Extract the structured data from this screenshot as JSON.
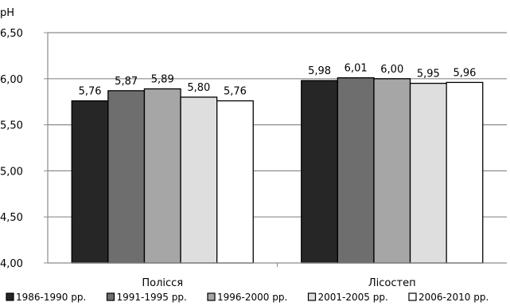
{
  "chart_data": {
    "type": "bar",
    "ylabel": "pH",
    "xlabel": "",
    "ylim": [
      4.0,
      6.5
    ],
    "ytick_step": 0.5,
    "grid": true,
    "legend_position": "bottom",
    "categories": [
      "Полісся",
      "Лісостеп"
    ],
    "series": [
      {
        "name": "1986-1990 рр.",
        "values": [
          5.76,
          5.98
        ],
        "labels": [
          "5,76",
          "5,98"
        ],
        "color": "#262626"
      },
      {
        "name": "1991-1995 рр.",
        "values": [
          5.87,
          6.01
        ],
        "labels": [
          "5,87",
          "6,01"
        ],
        "color": "#6e6e6e"
      },
      {
        "name": "1996-2000 рр.",
        "values": [
          5.89,
          6.0
        ],
        "labels": [
          "5,89",
          "6,00"
        ],
        "color": "#a6a6a6"
      },
      {
        "name": "2001-2005 рр.",
        "values": [
          5.8,
          5.95
        ],
        "labels": [
          "5,80",
          "5,95"
        ],
        "color": "#dedede"
      },
      {
        "name": "2006-2010 рр.",
        "values": [
          5.76,
          5.96
        ],
        "labels": [
          "5,76",
          "5,96"
        ],
        "color": "#ffffff"
      }
    ],
    "yticks": [
      "4,00",
      "4,50",
      "5,00",
      "5,50",
      "6,00",
      "6,50"
    ]
  }
}
